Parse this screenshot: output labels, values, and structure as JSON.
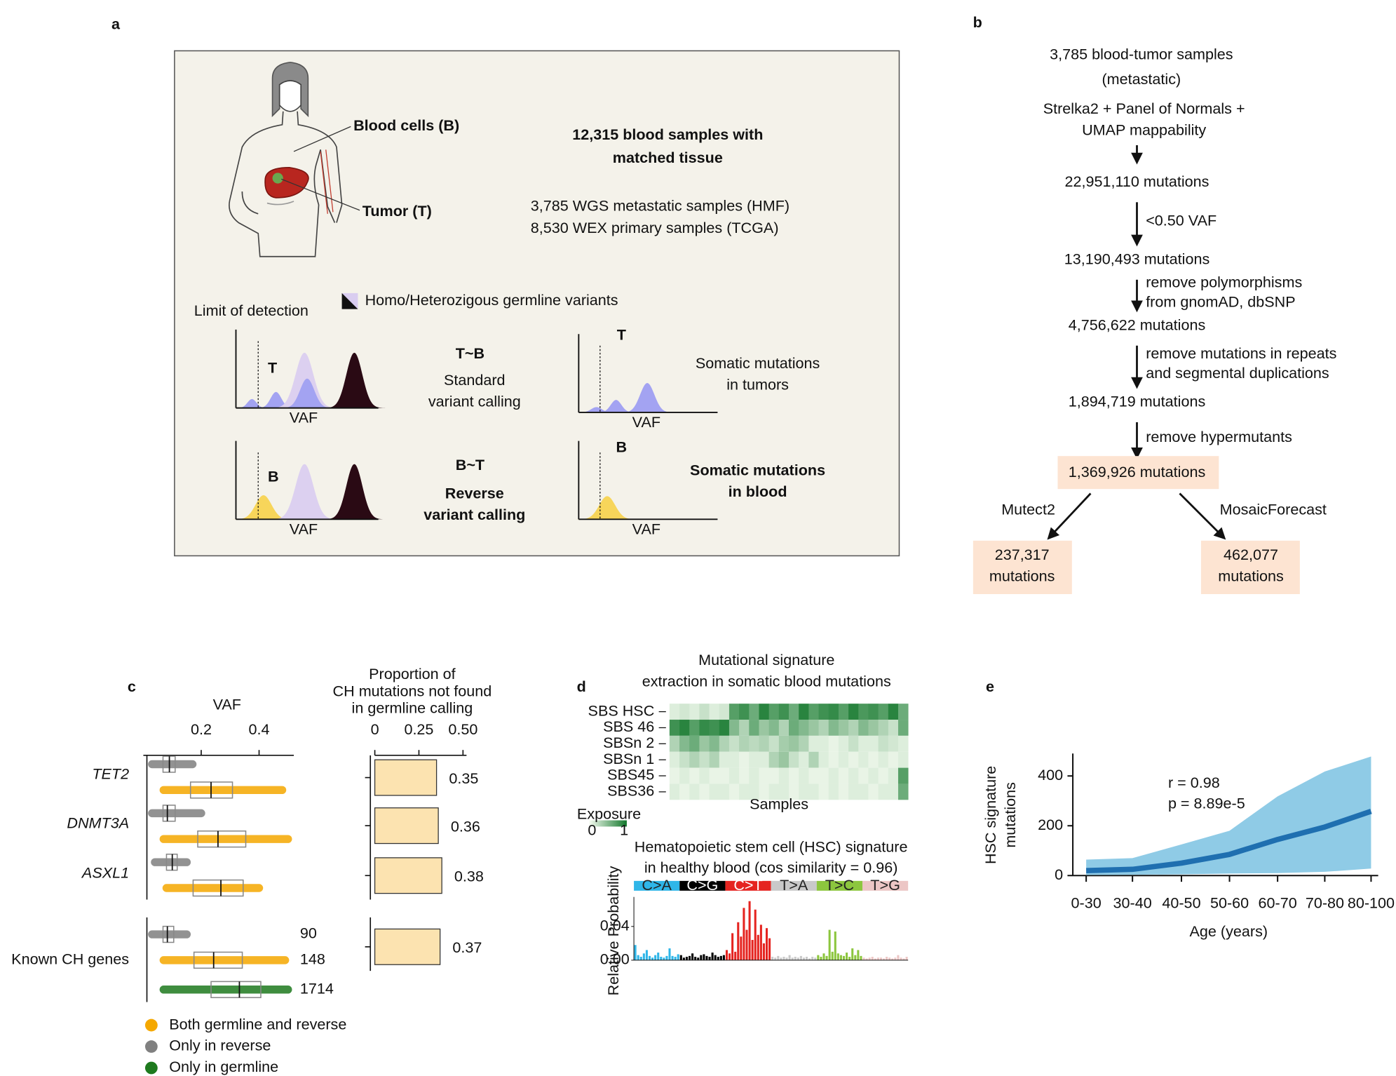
{
  "panel_labels": [
    "a",
    "b",
    "c",
    "d",
    "e"
  ],
  "panel_a": {
    "blood_label": "Blood cells (B)",
    "tumor_label": "Tumor (T)",
    "headline": [
      "12,315  blood samples with",
      "matched tissue"
    ],
    "cohorts": [
      "3,785 WGS metastatic samples (HMF)",
      "8,530 WEX primary samples (TCGA)"
    ],
    "legend": "Homo/Heterozigous germline variants",
    "limit_label": "Limit of detection",
    "plots": [
      {
        "letter": "T",
        "xlabel": "VAF"
      },
      {
        "letter": "T",
        "xlabel": "VAF"
      },
      {
        "letter": "B",
        "xlabel": "VAF"
      },
      {
        "letter": "B",
        "xlabel": "VAF"
      }
    ],
    "rows": [
      {
        "name": "T~B",
        "method": [
          "Standard",
          "variant calling"
        ],
        "result": [
          "Somatic mutations",
          "in tumors"
        ]
      },
      {
        "name": "B~T",
        "method": [
          "Reverse",
          "variant calling"
        ],
        "result": [
          "Somatic mutations",
          "in blood"
        ]
      }
    ]
  },
  "panel_b": {
    "title": [
      "3,785 blood-tumor samples",
      "(metastatic)"
    ],
    "pipeline": [
      "Strelka2 + Panel of Normals +",
      "UMAP mappability"
    ],
    "steps": [
      {
        "count": "22,951,110 mutations",
        "filter": [
          "<0.50 VAF"
        ]
      },
      {
        "count": "13,190,493 mutations",
        "filter": [
          "remove polymorphisms",
          "from gnomAD, dbSNP"
        ]
      },
      {
        "count": "4,756,622 mutations",
        "filter": [
          "remove mutations in repeats",
          "and segmental duplications"
        ]
      },
      {
        "count": "1,894,719 mutations",
        "filter": [
          "remove hypermutants"
        ]
      }
    ],
    "final": "1,369,926 mutations",
    "branches": [
      {
        "tool": "Mutect2",
        "result": [
          "237,317",
          "mutations"
        ]
      },
      {
        "tool": "MosaicForecast",
        "result": [
          "462,077",
          "mutations"
        ]
      }
    ]
  },
  "chart_data": [
    {
      "type": "box",
      "xlabel": "VAF",
      "xlim": [
        0,
        0.52
      ],
      "xticks": [
        0.2,
        0.4
      ],
      "categories": [
        "TET2",
        "DNMT3A",
        "ASXL1",
        "Known CH genes"
      ],
      "series": [
        {
          "name": "Both germline and reverse",
          "color": "#f5a800",
          "boxes": [
            {
              "whislo": 0.07,
              "q1": 0.163,
              "med": 0.234,
              "q3": 0.308,
              "whishi": 0.48
            },
            {
              "whislo": 0.07,
              "q1": 0.188,
              "med": 0.258,
              "q3": 0.354,
              "whishi": 0.5
            },
            {
              "whislo": 0.08,
              "q1": 0.172,
              "med": 0.268,
              "q3": 0.345,
              "whishi": 0.4
            },
            {
              "whislo": 0.07,
              "q1": 0.175,
              "med": 0.243,
              "q3": 0.342,
              "whishi": 0.49
            }
          ],
          "counts": [
            null,
            null,
            null,
            148
          ]
        },
        {
          "name": "Only in reverse",
          "color": "#808080",
          "boxes": [
            {
              "whislo": 0.03,
              "q1": 0.068,
              "med": 0.09,
              "q3": 0.11,
              "whishi": 0.17
            },
            {
              "whislo": 0.03,
              "q1": 0.068,
              "med": 0.083,
              "q3": 0.11,
              "whishi": 0.2
            },
            {
              "whislo": 0.04,
              "q1": 0.08,
              "med": 0.1,
              "q3": 0.117,
              "whishi": 0.15
            },
            {
              "whislo": 0.03,
              "q1": 0.068,
              "med": 0.083,
              "q3": 0.105,
              "whishi": 0.15
            }
          ],
          "counts": [
            null,
            null,
            null,
            90
          ]
        },
        {
          "name": "Only in germline",
          "color": "#1e7a1e",
          "boxes": [
            null,
            null,
            null,
            {
              "whislo": 0.07,
              "q1": 0.234,
              "med": 0.332,
              "q3": 0.406,
              "whishi": 0.5
            }
          ],
          "counts": [
            null,
            null,
            null,
            1714
          ]
        }
      ]
    },
    {
      "type": "bar",
      "orientation": "horizontal",
      "title": [
        "Proportion of",
        "CH mutations not found",
        "in germline calling"
      ],
      "xlim": [
        0,
        0.52
      ],
      "xticks": [
        0,
        0.25,
        {
          "value": 0.5,
          "label": "0.50"
        }
      ],
      "categories": [
        "TET2",
        "DNMT3A",
        "ASXL1",
        "Known CH genes"
      ],
      "values": [
        0.35,
        0.36,
        0.38,
        0.37
      ],
      "color": "#fce3b0"
    },
    {
      "type": "heatmap",
      "title": [
        "Mutational signature",
        "extraction in somatic blood mutations"
      ],
      "rows": [
        "SBS HSC",
        "SBS 46",
        "SBSn 2",
        "SBSn 1",
        "SBS45",
        "SBS36"
      ],
      "xlabel": "Samples",
      "colorbar_label": "Exposure",
      "clim": [
        0,
        1
      ],
      "values": [
        [
          0.1,
          0.15,
          0.1,
          0.2,
          0.1,
          0.15,
          0.7,
          0.8,
          0.6,
          0.9,
          0.7,
          0.8,
          0.6,
          0.9,
          0.7,
          0.8,
          0.85,
          0.7,
          0.9,
          0.75,
          0.8,
          0.7,
          0.9,
          0.6
        ],
        [
          0.8,
          0.9,
          0.7,
          0.85,
          0.8,
          0.9,
          0.5,
          0.3,
          0.6,
          0.4,
          0.5,
          0.3,
          0.6,
          0.5,
          0.4,
          0.3,
          0.5,
          0.4,
          0.3,
          0.5,
          0.4,
          0.3,
          0.2,
          0.6
        ],
        [
          0.3,
          0.5,
          0.6,
          0.4,
          0.5,
          0.3,
          0.2,
          0.3,
          0.25,
          0.3,
          0.2,
          0.35,
          0.4,
          0.3,
          0.1,
          0.1,
          0.05,
          0.1,
          0.2,
          0.1,
          0.1,
          0.2,
          0.15,
          0.1
        ],
        [
          0.1,
          0.2,
          0.3,
          0.2,
          0.3,
          0.1,
          0.1,
          0.05,
          0.1,
          0.1,
          0.3,
          0.4,
          0.2,
          0.1,
          0.3,
          0.1,
          0.05,
          0.1,
          0.05,
          0.1,
          0.05,
          0.1,
          0.05,
          0.1
        ],
        [
          0.05,
          0.1,
          0.05,
          0.1,
          0.05,
          0.05,
          0.1,
          0.05,
          0.1,
          0.05,
          0.05,
          0.1,
          0.05,
          0.1,
          0.05,
          0.05,
          0.1,
          0.05,
          0.1,
          0.05,
          0.1,
          0.05,
          0.1,
          0.7
        ],
        [
          0.1,
          0.05,
          0.1,
          0.05,
          0.1,
          0.1,
          0.05,
          0.1,
          0.1,
          0.05,
          0.1,
          0.1,
          0.05,
          0.1,
          0.1,
          0.05,
          0.1,
          0.05,
          0.1,
          0.1,
          0.05,
          0.1,
          0.1,
          0.6
        ]
      ]
    },
    {
      "type": "signature",
      "title": [
        "Hematopoietic stem cell (HSC) signature",
        "in healthy blood (cos similarity = 0.96)"
      ],
      "ylabel": "Relative Probability",
      "ylim": [
        0,
        0.075
      ],
      "yticks": [
        {
          "value": 0,
          "label": "0.00"
        },
        0.04
      ],
      "classes": [
        "C>A",
        "C>G",
        "C>T",
        "T>A",
        "T>C",
        "T>G"
      ],
      "class_colors": [
        "#2fb6e8",
        "#000000",
        "#e52420",
        "#c9c9c9",
        "#8cc63e",
        "#ecc6c5"
      ],
      "values": [
        [
          0.018,
          0.006,
          0.004,
          0.008,
          0.012,
          0.005,
          0.003,
          0.006,
          0.009,
          0.004,
          0.003,
          0.005,
          0.014,
          0.005,
          0.004,
          0.007
        ],
        [
          0.006,
          0.003,
          0.004,
          0.005,
          0.008,
          0.004,
          0.003,
          0.006,
          0.007,
          0.005,
          0.004,
          0.009,
          0.006,
          0.004,
          0.005,
          0.006
        ],
        [
          0.012,
          0.008,
          0.032,
          0.01,
          0.045,
          0.028,
          0.062,
          0.036,
          0.07,
          0.024,
          0.06,
          0.03,
          0.042,
          0.02,
          0.038,
          0.026
        ],
        [
          0.004,
          0.003,
          0.005,
          0.003,
          0.004,
          0.003,
          0.006,
          0.003,
          0.004,
          0.003,
          0.005,
          0.003,
          0.004,
          0.002,
          0.004,
          0.003
        ],
        [
          0.006,
          0.004,
          0.008,
          0.005,
          0.036,
          0.01,
          0.034,
          0.008,
          0.006,
          0.005,
          0.009,
          0.004,
          0.014,
          0.006,
          0.012,
          0.005
        ],
        [
          0.003,
          0.002,
          0.003,
          0.004,
          0.002,
          0.003,
          0.003,
          0.002,
          0.004,
          0.003,
          0.002,
          0.003,
          0.006,
          0.003,
          0.002,
          0.004
        ]
      ]
    },
    {
      "type": "line",
      "ylabel": [
        "HSC signature",
        "mutations"
      ],
      "xlabel": "Age (years)",
      "categories": [
        "0-30",
        "30-40",
        "40-50",
        "50-60",
        "60-70",
        "70-80",
        "80-100"
      ],
      "values": [
        20,
        25,
        50,
        85,
        145,
        195,
        258
      ],
      "band_lower": [
        2,
        3,
        5,
        8,
        10,
        15,
        28
      ],
      "band_upper": [
        64,
        70,
        125,
        180,
        318,
        418,
        478
      ],
      "color": "#1f6fb0",
      "band_color": "#8fcbe6",
      "ylim": [
        0,
        490
      ],
      "yticks": [
        0,
        200,
        400
      ],
      "annotations": [
        "r = 0.98",
        "p = 8.89e-5"
      ]
    }
  ]
}
